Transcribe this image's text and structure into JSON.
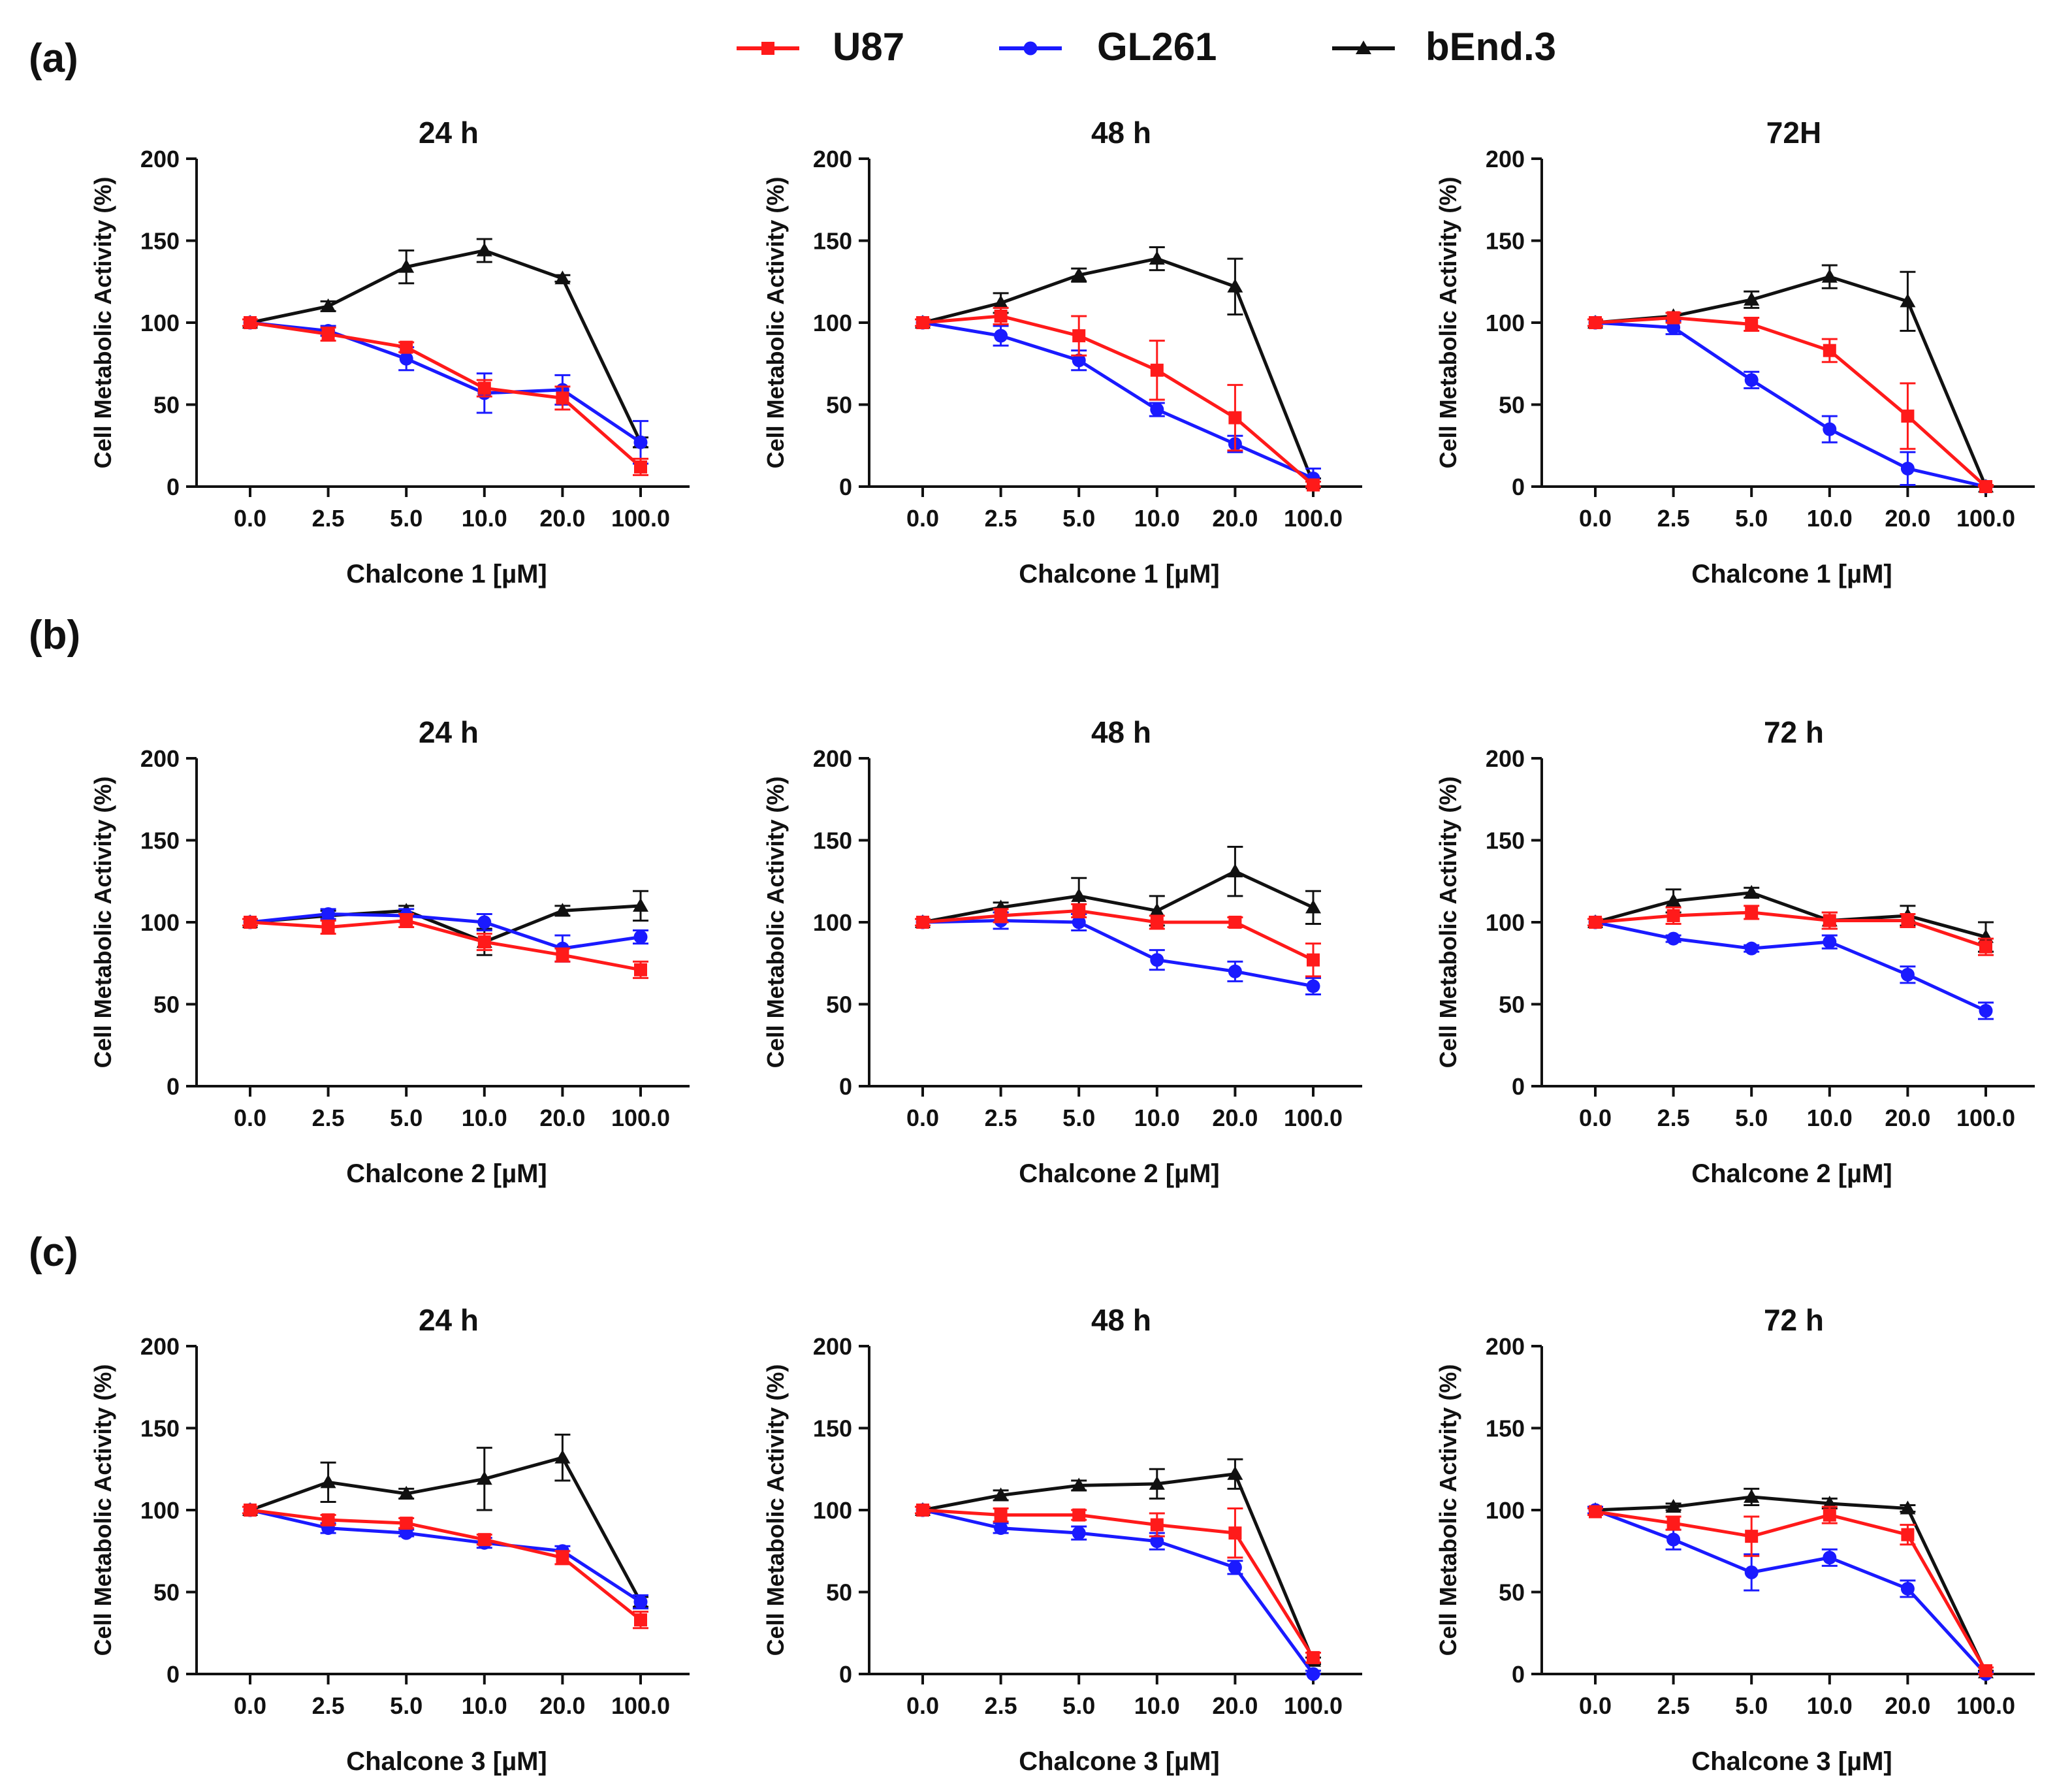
{
  "legend": [
    {
      "name": "U87",
      "color": "#ff1a1a",
      "marker": "square"
    },
    {
      "name": "GL261",
      "color": "#1a1aff",
      "marker": "circle"
    },
    {
      "name": "bEnd.3",
      "color": "#111111",
      "marker": "triangle"
    }
  ],
  "panel_labels": [
    "(a)",
    "(b)",
    "(c)"
  ],
  "chart_data": [
    {
      "type": "line",
      "panel": "(a)",
      "title": "24 h",
      "xlabel": "Chalcone 1 [µM]",
      "ylabel": "Cell Metabolic Activity (%)",
      "categories": [
        "0.0",
        "2.5",
        "5.0",
        "10.0",
        "20.0",
        "100.0"
      ],
      "ylim": [
        0,
        200
      ],
      "yticks": [
        0,
        50,
        100,
        150,
        200
      ],
      "series": [
        {
          "name": "U87",
          "values": [
            100,
            93,
            85,
            60,
            54,
            12
          ],
          "errors": [
            2,
            4,
            3,
            5,
            7,
            5
          ]
        },
        {
          "name": "GL261",
          "values": [
            100,
            95,
            78,
            57,
            59,
            27
          ],
          "errors": [
            2,
            3,
            7,
            12,
            9,
            13
          ]
        },
        {
          "name": "bEnd.3",
          "values": [
            100,
            110,
            134,
            144,
            127,
            27
          ],
          "errors": [
            2,
            3,
            10,
            7,
            2,
            3
          ]
        }
      ]
    },
    {
      "type": "line",
      "panel": "(a)",
      "title": "48 h",
      "xlabel": "Chalcone 1 [µM]",
      "ylabel": "Cell Metabolic Activity (%)",
      "categories": [
        "0.0",
        "2.5",
        "5.0",
        "10.0",
        "20.0",
        "100.0"
      ],
      "ylim": [
        0,
        200
      ],
      "yticks": [
        0,
        50,
        100,
        150,
        200
      ],
      "series": [
        {
          "name": "U87",
          "values": [
            100,
            104,
            92,
            71,
            42,
            1
          ],
          "errors": [
            2,
            5,
            12,
            18,
            20,
            2
          ]
        },
        {
          "name": "GL261",
          "values": [
            100,
            92,
            77,
            47,
            26,
            5
          ],
          "errors": [
            2,
            6,
            6,
            4,
            5,
            6
          ]
        },
        {
          "name": "bEnd.3",
          "values": [
            100,
            112,
            129,
            139,
            122,
            2
          ],
          "errors": [
            2,
            6,
            4,
            7,
            17,
            3
          ]
        }
      ]
    },
    {
      "type": "line",
      "panel": "(a)",
      "title": "72H",
      "xlabel": "Chalcone 1 [µM]",
      "ylabel": "Cell Metabolic Activity (%)",
      "categories": [
        "0.0",
        "2.5",
        "5.0",
        "10.0",
        "20.0",
        "100.0"
      ],
      "ylim": [
        0,
        200
      ],
      "yticks": [
        0,
        50,
        100,
        150,
        200
      ],
      "series": [
        {
          "name": "U87",
          "values": [
            100,
            103,
            99,
            83,
            43,
            0
          ],
          "errors": [
            2,
            3,
            4,
            7,
            20,
            1
          ]
        },
        {
          "name": "GL261",
          "values": [
            100,
            97,
            65,
            35,
            11,
            0
          ],
          "errors": [
            2,
            4,
            5,
            8,
            10,
            1
          ]
        },
        {
          "name": "bEnd.3",
          "values": [
            100,
            104,
            114,
            128,
            113,
            0
          ],
          "errors": [
            2,
            2,
            5,
            7,
            18,
            1
          ]
        }
      ]
    },
    {
      "type": "line",
      "panel": "(b)",
      "title": "24 h",
      "xlabel": "Chalcone 2 [µM]",
      "ylabel": "Cell Metabolic Activity (%)",
      "categories": [
        "0.0",
        "2.5",
        "5.0",
        "10.0",
        "20.0",
        "100.0"
      ],
      "ylim": [
        0,
        200
      ],
      "yticks": [
        0,
        50,
        100,
        150,
        200
      ],
      "series": [
        {
          "name": "U87",
          "values": [
            100,
            97,
            101,
            88,
            80,
            71
          ],
          "errors": [
            2,
            4,
            4,
            5,
            4,
            5
          ]
        },
        {
          "name": "GL261",
          "values": [
            100,
            105,
            104,
            100,
            84,
            91
          ],
          "errors": [
            2,
            3,
            4,
            5,
            8,
            4
          ]
        },
        {
          "name": "bEnd.3",
          "values": [
            100,
            104,
            107,
            88,
            107,
            110
          ],
          "errors": [
            2,
            3,
            3,
            8,
            3,
            9
          ]
        }
      ]
    },
    {
      "type": "line",
      "panel": "(b)",
      "title": "48 h",
      "xlabel": "Chalcone 2 [µM]",
      "ylabel": "Cell Metabolic Activity (%)",
      "categories": [
        "0.0",
        "2.5",
        "5.0",
        "10.0",
        "20.0",
        "100.0"
      ],
      "ylim": [
        0,
        200
      ],
      "yticks": [
        0,
        50,
        100,
        150,
        200
      ],
      "series": [
        {
          "name": "U87",
          "values": [
            100,
            104,
            107,
            100,
            100,
            77
          ],
          "errors": [
            2,
            4,
            4,
            4,
            3,
            10
          ]
        },
        {
          "name": "GL261",
          "values": [
            100,
            101,
            100,
            77,
            70,
            61
          ],
          "errors": [
            2,
            5,
            5,
            6,
            6,
            5
          ]
        },
        {
          "name": "bEnd.3",
          "values": [
            100,
            109,
            116,
            107,
            131,
            109
          ],
          "errors": [
            2,
            3,
            11,
            9,
            15,
            10
          ]
        }
      ]
    },
    {
      "type": "line",
      "panel": "(b)",
      "title": "72 h",
      "xlabel": "Chalcone 2 [µM]",
      "ylabel": "Cell Metabolic Activity (%)",
      "categories": [
        "0.0",
        "2.5",
        "5.0",
        "10.0",
        "20.0",
        "100.0"
      ],
      "ylim": [
        0,
        200
      ],
      "yticks": [
        0,
        50,
        100,
        150,
        200
      ],
      "series": [
        {
          "name": "U87",
          "values": [
            100,
            104,
            106,
            101,
            101,
            85
          ],
          "errors": [
            2,
            5,
            4,
            5,
            4,
            5
          ]
        },
        {
          "name": "GL261",
          "values": [
            100,
            90,
            84,
            88,
            68,
            46
          ],
          "errors": [
            2,
            2,
            2,
            4,
            5,
            5
          ]
        },
        {
          "name": "bEnd.3",
          "values": [
            100,
            113,
            118,
            101,
            104,
            91
          ],
          "errors": [
            2,
            7,
            3,
            5,
            6,
            9
          ]
        }
      ]
    },
    {
      "type": "line",
      "panel": "(c)",
      "title": "24 h",
      "xlabel": "Chalcone 3 [µM]",
      "ylabel": "Cell Metabolic Activity (%)",
      "categories": [
        "0.0",
        "2.5",
        "5.0",
        "10.0",
        "20.0",
        "100.0"
      ],
      "ylim": [
        0,
        200
      ],
      "yticks": [
        0,
        50,
        100,
        150,
        200
      ],
      "series": [
        {
          "name": "U87",
          "values": [
            100,
            94,
            92,
            82,
            71,
            33
          ],
          "errors": [
            2,
            3,
            3,
            3,
            4,
            5
          ]
        },
        {
          "name": "GL261",
          "values": [
            100,
            89,
            86,
            80,
            75,
            44
          ],
          "errors": [
            2,
            3,
            2,
            3,
            3,
            4
          ]
        },
        {
          "name": "bEnd.3",
          "values": [
            100,
            117,
            110,
            119,
            132,
            44
          ],
          "errors": [
            2,
            12,
            3,
            19,
            14,
            3
          ]
        }
      ]
    },
    {
      "type": "line",
      "panel": "(c)",
      "title": "48 h",
      "xlabel": "Chalcone 3 [µM]",
      "ylabel": "Cell Metabolic Activity (%)",
      "categories": [
        "0.0",
        "2.5",
        "5.0",
        "10.0",
        "20.0",
        "100.0"
      ],
      "ylim": [
        0,
        200
      ],
      "yticks": [
        0,
        50,
        100,
        150,
        200
      ],
      "series": [
        {
          "name": "U87",
          "values": [
            100,
            97,
            97,
            91,
            86,
            10
          ],
          "errors": [
            2,
            4,
            3,
            7,
            15,
            3
          ]
        },
        {
          "name": "GL261",
          "values": [
            100,
            89,
            86,
            81,
            65,
            0
          ],
          "errors": [
            2,
            3,
            4,
            5,
            4,
            2
          ]
        },
        {
          "name": "bEnd.3",
          "values": [
            100,
            109,
            115,
            116,
            122,
            8
          ],
          "errors": [
            2,
            3,
            3,
            9,
            9,
            2
          ]
        }
      ]
    },
    {
      "type": "line",
      "panel": "(c)",
      "title": "72 h",
      "xlabel": "Chalcone 3 [µM]",
      "ylabel": "Cell Metabolic Activity (%)",
      "categories": [
        "0.0",
        "2.5",
        "5.0",
        "10.0",
        "20.0",
        "100.0"
      ],
      "ylim": [
        0,
        200
      ],
      "yticks": [
        0,
        50,
        100,
        150,
        200
      ],
      "series": [
        {
          "name": "U87",
          "values": [
            99,
            92,
            84,
            97,
            85,
            2
          ],
          "errors": [
            2,
            4,
            12,
            5,
            6,
            2
          ]
        },
        {
          "name": "GL261",
          "values": [
            100,
            82,
            62,
            71,
            52,
            0
          ],
          "errors": [
            2,
            6,
            11,
            5,
            5,
            1
          ]
        },
        {
          "name": "bEnd.3",
          "values": [
            100,
            102,
            108,
            104,
            101,
            1
          ],
          "errors": [
            2,
            2,
            5,
            3,
            2,
            1
          ]
        }
      ]
    }
  ]
}
